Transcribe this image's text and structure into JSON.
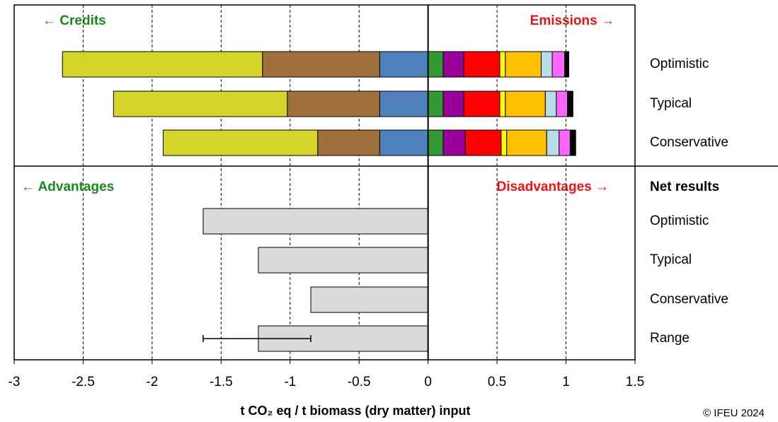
{
  "chart_data": {
    "type": "bar",
    "orientation": "horizontal",
    "annotations": [
      "← Credits",
      "Emissions →",
      "← Advantages",
      "Disadvantages →"
    ],
    "categories": [
      "Optimistic",
      "Typical",
      "Conservative"
    ],
    "series": [
      {
        "color": "#4f81bd",
        "values": [
          -0.35,
          -0.35,
          -0.35
        ]
      },
      {
        "color": "#a0703c",
        "values": [
          -0.85,
          -0.67,
          -0.45
        ]
      },
      {
        "color": "#d4d42a",
        "values": [
          -1.45,
          -1.26,
          -1.12
        ]
      },
      {
        "color": "#339933",
        "values": [
          0.11,
          0.11,
          0.11
        ]
      },
      {
        "color": "#990099",
        "values": [
          0.15,
          0.15,
          0.16
        ]
      },
      {
        "color": "#ff0000",
        "values": [
          0.26,
          0.26,
          0.26
        ]
      },
      {
        "color": "#ffff00",
        "values": [
          0.04,
          0.04,
          0.04
        ]
      },
      {
        "color": "#ffc000",
        "values": [
          0.26,
          0.29,
          0.29
        ]
      },
      {
        "color": "#b7dde8",
        "values": [
          0.08,
          0.08,
          0.09
        ]
      },
      {
        "color": "#ff66ff",
        "values": [
          0.09,
          0.08,
          0.08
        ]
      },
      {
        "color": "#000000",
        "values": [
          0.03,
          0.04,
          0.04
        ]
      }
    ],
    "net": {
      "title": "Net results",
      "categories": [
        "Optimistic",
        "Typical",
        "Conservative",
        "Range"
      ],
      "values": [
        -1.63,
        -1.23,
        -0.85,
        -1.23
      ],
      "color": "#d9d9d9",
      "range_bar": [
        -1.63,
        -0.85
      ]
    },
    "xlabel": "t CO₂ eq / t biomass (dry matter) input",
    "xlim": [
      -3,
      1.5
    ],
    "xticks": [
      -3,
      -2.5,
      -2,
      -1.5,
      -1,
      -0.5,
      0,
      0.5,
      1,
      1.5
    ],
    "grid": true,
    "footer": "© IFEU 2024"
  }
}
